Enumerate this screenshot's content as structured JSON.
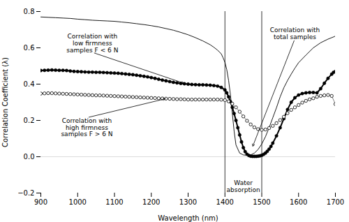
{
  "chart_data": {
    "type": "line",
    "xlabel": "Wavelength (nm)",
    "ylabel": "Correlation Coefficient (λ)",
    "xlim": [
      900,
      1700
    ],
    "ylim": [
      -0.2,
      0.8
    ],
    "xticks": [
      900,
      1000,
      1100,
      1200,
      1300,
      1400,
      1500,
      1600,
      1700
    ],
    "yticks": [
      {
        "value": -0.2,
        "label": "−0.2"
      },
      {
        "value": 0,
        "label": "0.0"
      },
      0.2,
      0.4,
      0.6,
      0.8
    ],
    "grid": false,
    "vlines": [
      1400,
      1500
    ],
    "hlines": [
      0
    ],
    "series": [
      {
        "color": "black",
        "marker": "none",
        "line_style": "solid",
        "x": [
          900,
          920,
          940,
          960,
          980,
          1000,
          1020,
          1040,
          1060,
          1080,
          1100,
          1120,
          1140,
          1160,
          1180,
          1200,
          1220,
          1240,
          1260,
          1280,
          1300,
          1320,
          1340,
          1360,
          1370,
          1380,
          1390,
          1395,
          1400,
          1405,
          1410,
          1415,
          1420,
          1425,
          1430,
          1440,
          1450,
          1460,
          1470,
          1480,
          1490,
          1500,
          1510,
          1520,
          1530,
          1540,
          1550,
          1560,
          1570,
          1580,
          1590,
          1600,
          1620,
          1640,
          1660,
          1680,
          1695,
          1700
        ],
        "values": [
          0.77,
          0.768,
          0.766,
          0.764,
          0.762,
          0.758,
          0.755,
          0.752,
          0.75,
          0.748,
          0.746,
          0.742,
          0.738,
          0.733,
          0.728,
          0.722,
          0.715,
          0.706,
          0.697,
          0.685,
          0.672,
          0.656,
          0.638,
          0.617,
          0.603,
          0.587,
          0.567,
          0.545,
          0.52,
          0.48,
          0.42,
          0.34,
          0.24,
          0.14,
          0.065,
          0.02,
          0.01,
          0.008,
          0.01,
          0.02,
          0.04,
          0.07,
          0.11,
          0.16,
          0.215,
          0.27,
          0.33,
          0.38,
          0.42,
          0.455,
          0.488,
          0.518,
          0.56,
          0.6,
          0.628,
          0.648,
          0.66,
          0.665
        ]
      },
      {
        "color": "black",
        "marker": "filled_circle",
        "line_style": "solid",
        "x": [
          900,
          910,
          920,
          930,
          940,
          950,
          960,
          970,
          980,
          990,
          1000,
          1010,
          1020,
          1030,
          1040,
          1050,
          1060,
          1070,
          1080,
          1090,
          1100,
          1110,
          1120,
          1130,
          1140,
          1150,
          1160,
          1170,
          1180,
          1190,
          1200,
          1210,
          1220,
          1230,
          1240,
          1250,
          1260,
          1270,
          1280,
          1290,
          1300,
          1310,
          1320,
          1330,
          1340,
          1350,
          1360,
          1370,
          1380,
          1390,
          1400,
          1405,
          1410,
          1415,
          1420,
          1425,
          1430,
          1435,
          1440,
          1445,
          1450,
          1455,
          1460,
          1465,
          1470,
          1475,
          1480,
          1485,
          1490,
          1495,
          1500,
          1505,
          1510,
          1515,
          1520,
          1525,
          1530,
          1540,
          1550,
          1560,
          1570,
          1580,
          1590,
          1600,
          1610,
          1620,
          1630,
          1640,
          1650,
          1660,
          1670,
          1680,
          1690,
          1695,
          1700
        ],
        "values": [
          0.475,
          0.476,
          0.477,
          0.478,
          0.477,
          0.476,
          0.476,
          0.475,
          0.472,
          0.47,
          0.469,
          0.468,
          0.467,
          0.466,
          0.466,
          0.465,
          0.465,
          0.464,
          0.463,
          0.462,
          0.461,
          0.46,
          0.458,
          0.456,
          0.454,
          0.452,
          0.449,
          0.446,
          0.443,
          0.44,
          0.436,
          0.432,
          0.427,
          0.422,
          0.418,
          0.414,
          0.41,
          0.407,
          0.404,
          0.402,
          0.4,
          0.398,
          0.397,
          0.396,
          0.396,
          0.395,
          0.394,
          0.392,
          0.389,
          0.382,
          0.368,
          0.352,
          0.33,
          0.303,
          0.272,
          0.238,
          0.2,
          0.16,
          0.12,
          0.082,
          0.05,
          0.028,
          0.014,
          0.007,
          0.003,
          0.002,
          0.002,
          0.002,
          0.003,
          0.005,
          0.008,
          0.013,
          0.02,
          0.03,
          0.042,
          0.057,
          0.075,
          0.115,
          0.16,
          0.21,
          0.26,
          0.3,
          0.325,
          0.34,
          0.348,
          0.352,
          0.354,
          0.354,
          0.352,
          0.375,
          0.405,
          0.432,
          0.455,
          0.465,
          0.47
        ]
      },
      {
        "color": "black",
        "marker": "open_circle",
        "line_style": "solid",
        "x": [
          900,
          910,
          920,
          930,
          940,
          950,
          960,
          970,
          980,
          990,
          1000,
          1010,
          1020,
          1030,
          1040,
          1050,
          1060,
          1070,
          1080,
          1090,
          1100,
          1110,
          1120,
          1130,
          1140,
          1150,
          1160,
          1170,
          1180,
          1190,
          1200,
          1210,
          1220,
          1230,
          1240,
          1250,
          1260,
          1270,
          1280,
          1290,
          1300,
          1310,
          1320,
          1330,
          1340,
          1350,
          1360,
          1370,
          1380,
          1390,
          1400,
          1410,
          1420,
          1430,
          1440,
          1450,
          1460,
          1470,
          1480,
          1490,
          1500,
          1510,
          1520,
          1530,
          1540,
          1550,
          1560,
          1570,
          1580,
          1590,
          1600,
          1610,
          1620,
          1630,
          1640,
          1650,
          1660,
          1670,
          1680,
          1690,
          1700
        ],
        "values": [
          0.348,
          0.349,
          0.35,
          0.35,
          0.349,
          0.348,
          0.347,
          0.346,
          0.345,
          0.344,
          0.343,
          0.342,
          0.341,
          0.34,
          0.339,
          0.338,
          0.338,
          0.337,
          0.336,
          0.335,
          0.334,
          0.333,
          0.332,
          0.331,
          0.33,
          0.329,
          0.328,
          0.327,
          0.326,
          0.325,
          0.324,
          0.323,
          0.322,
          0.321,
          0.32,
          0.319,
          0.318,
          0.317,
          0.317,
          0.316,
          0.315,
          0.315,
          0.315,
          0.315,
          0.315,
          0.315,
          0.315,
          0.315,
          0.315,
          0.314,
          0.312,
          0.305,
          0.292,
          0.272,
          0.248,
          0.222,
          0.198,
          0.178,
          0.162,
          0.152,
          0.148,
          0.15,
          0.158,
          0.17,
          0.185,
          0.202,
          0.22,
          0.24,
          0.258,
          0.272,
          0.285,
          0.298,
          0.308,
          0.316,
          0.322,
          0.33,
          0.335,
          0.338,
          0.34,
          0.335,
          0.29
        ]
      }
    ],
    "annotations": [
      {
        "text": "Water\nabsorption",
        "x": 1450,
        "y": -0.13
      },
      {
        "text": "Correlation with\ntotal samples",
        "x": 1590,
        "y": 0.65,
        "arrow_x": 1475,
        "arrow_y": 0.055
      },
      {
        "text": "Correlation with\nlow firmness\nsamples F < 6 N",
        "x": 1040,
        "y": 0.575,
        "arrow_x": 1290,
        "arrow_y": 0.404
      },
      {
        "text": "Correlation with\nhigh firmness\nsamples F > 6 N",
        "x": 1025,
        "y": 0.215,
        "arrow_x": 1240,
        "arrow_y": 0.32
      }
    ]
  }
}
